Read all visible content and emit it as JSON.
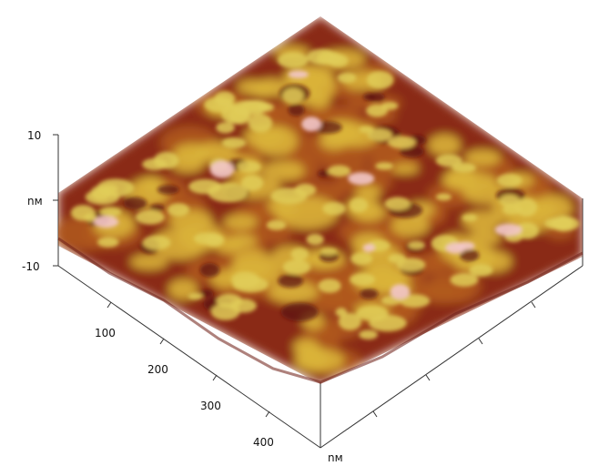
{
  "z_axis": {
    "top_tick": "10",
    "unit": "nм",
    "bottom_tick": "-10"
  },
  "y_axis": {
    "ticks": [
      "100",
      "200",
      "300",
      "400"
    ]
  },
  "x_axis": {
    "unit": "nм"
  },
  "colors": {
    "deep": "#5a0d0d",
    "dark": "#7a1f12",
    "mid": "#b05a1e",
    "bright": "#d9b23a",
    "yellow": "#e0cc58",
    "peak": "#f2c7c8"
  }
}
